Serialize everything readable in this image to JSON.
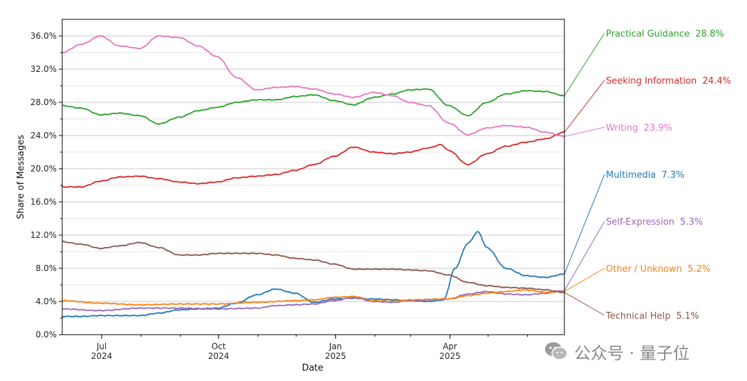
{
  "chart_data": {
    "type": "line",
    "xlabel": "Date",
    "ylabel": "Share of Messages",
    "ylim": [
      0,
      38
    ],
    "xlim": [
      "2024-05-31",
      "2025-06-30"
    ],
    "grid": "horizontal",
    "y_ticks": [
      "0.0%",
      "4.0%",
      "8.0%",
      "12.0%",
      "16.0%",
      "20.0%",
      "24.0%",
      "28.0%",
      "32.0%",
      "36.0%"
    ],
    "x_ticks": [
      {
        "date": "2024-07-01",
        "line1": "Jul",
        "line2": "2024"
      },
      {
        "date": "2024-10-01",
        "line1": "Oct",
        "line2": "2024"
      },
      {
        "date": "2025-01-01",
        "line1": "Jan",
        "line2": "2025"
      },
      {
        "date": "2025-04-01",
        "line1": "Apr",
        "line2": "2025"
      }
    ],
    "series": [
      {
        "name": "Practical Guidance",
        "final_label": "28.8%",
        "color": "#2ca02c",
        "points": [
          [
            "2024-05-31",
            27.6
          ],
          [
            "2024-06-15",
            27.3
          ],
          [
            "2024-06-30",
            26.5
          ],
          [
            "2024-07-15",
            26.7
          ],
          [
            "2024-07-31",
            26.4
          ],
          [
            "2024-08-15",
            25.4
          ],
          [
            "2024-08-31",
            26.2
          ],
          [
            "2024-09-15",
            27.0
          ],
          [
            "2024-09-30",
            27.4
          ],
          [
            "2024-10-15",
            28.0
          ],
          [
            "2024-10-31",
            28.3
          ],
          [
            "2024-11-15",
            28.3
          ],
          [
            "2024-11-30",
            28.7
          ],
          [
            "2024-12-15",
            28.9
          ],
          [
            "2024-12-31",
            28.2
          ],
          [
            "2025-01-15",
            27.7
          ],
          [
            "2025-01-31",
            28.6
          ],
          [
            "2025-02-15",
            29.0
          ],
          [
            "2025-02-28",
            29.5
          ],
          [
            "2025-03-15",
            29.6
          ],
          [
            "2025-03-31",
            27.6
          ],
          [
            "2025-04-15",
            26.4
          ],
          [
            "2025-04-30",
            28.0
          ],
          [
            "2025-05-15",
            29.0
          ],
          [
            "2025-05-31",
            29.4
          ],
          [
            "2025-06-15",
            29.3
          ],
          [
            "2025-06-30",
            28.8
          ]
        ]
      },
      {
        "name": "Seeking Information",
        "final_label": "24.4%",
        "color": "#d62728",
        "points": [
          [
            "2024-05-31",
            17.8
          ],
          [
            "2024-06-15",
            17.8
          ],
          [
            "2024-06-30",
            18.5
          ],
          [
            "2024-07-15",
            19.0
          ],
          [
            "2024-07-31",
            19.1
          ],
          [
            "2024-08-15",
            18.8
          ],
          [
            "2024-08-31",
            18.4
          ],
          [
            "2024-09-15",
            18.2
          ],
          [
            "2024-09-30",
            18.4
          ],
          [
            "2024-10-15",
            18.9
          ],
          [
            "2024-10-31",
            19.1
          ],
          [
            "2024-11-15",
            19.3
          ],
          [
            "2024-11-30",
            19.8
          ],
          [
            "2024-12-15",
            20.5
          ],
          [
            "2024-12-31",
            21.5
          ],
          [
            "2025-01-15",
            22.6
          ],
          [
            "2025-01-31",
            22.0
          ],
          [
            "2025-02-15",
            21.8
          ],
          [
            "2025-02-28",
            22.0
          ],
          [
            "2025-03-15",
            22.5
          ],
          [
            "2025-03-25",
            22.9
          ],
          [
            "2025-03-31",
            22.2
          ],
          [
            "2025-04-15",
            20.5
          ],
          [
            "2025-04-30",
            21.8
          ],
          [
            "2025-05-15",
            22.7
          ],
          [
            "2025-05-31",
            23.2
          ],
          [
            "2025-06-15",
            23.6
          ],
          [
            "2025-06-30",
            24.4
          ]
        ]
      },
      {
        "name": "Writing",
        "final_label": "23.9%",
        "color": "#e377c2",
        "points": [
          [
            "2024-05-31",
            34.0
          ],
          [
            "2024-06-15",
            35.0
          ],
          [
            "2024-06-30",
            36.0
          ],
          [
            "2024-07-15",
            34.8
          ],
          [
            "2024-07-31",
            34.5
          ],
          [
            "2024-08-15",
            36.0
          ],
          [
            "2024-08-31",
            35.8
          ],
          [
            "2024-09-15",
            34.8
          ],
          [
            "2024-09-30",
            33.5
          ],
          [
            "2024-10-15",
            31.0
          ],
          [
            "2024-10-31",
            29.5
          ],
          [
            "2024-11-15",
            29.8
          ],
          [
            "2024-11-30",
            29.9
          ],
          [
            "2024-12-15",
            29.6
          ],
          [
            "2024-12-31",
            29.0
          ],
          [
            "2025-01-15",
            28.6
          ],
          [
            "2025-01-31",
            29.2
          ],
          [
            "2025-02-15",
            28.8
          ],
          [
            "2025-02-28",
            28.0
          ],
          [
            "2025-03-15",
            27.6
          ],
          [
            "2025-03-31",
            25.5
          ],
          [
            "2025-04-15",
            24.1
          ],
          [
            "2025-04-30",
            24.9
          ],
          [
            "2025-05-15",
            25.2
          ],
          [
            "2025-05-31",
            25.0
          ],
          [
            "2025-06-15",
            24.4
          ],
          [
            "2025-06-30",
            23.9
          ]
        ]
      },
      {
        "name": "Multimedia",
        "final_label": "7.3%",
        "color": "#1f77b4",
        "points": [
          [
            "2024-05-31",
            2.2
          ],
          [
            "2024-06-15",
            2.2
          ],
          [
            "2024-06-30",
            2.3
          ],
          [
            "2024-07-15",
            2.3
          ],
          [
            "2024-07-31",
            2.3
          ],
          [
            "2024-08-15",
            2.6
          ],
          [
            "2024-08-31",
            3.0
          ],
          [
            "2024-09-15",
            3.1
          ],
          [
            "2024-09-30",
            3.2
          ],
          [
            "2024-10-15",
            3.8
          ],
          [
            "2024-10-31",
            4.8
          ],
          [
            "2024-11-15",
            5.5
          ],
          [
            "2024-11-30",
            5.0
          ],
          [
            "2024-12-15",
            3.9
          ],
          [
            "2024-12-31",
            4.3
          ],
          [
            "2025-01-15",
            4.4
          ],
          [
            "2025-01-31",
            4.3
          ],
          [
            "2025-02-15",
            4.2
          ],
          [
            "2025-02-28",
            4.1
          ],
          [
            "2025-03-15",
            4.0
          ],
          [
            "2025-03-27",
            4.2
          ],
          [
            "2025-04-05",
            8.0
          ],
          [
            "2025-04-15",
            11.0
          ],
          [
            "2025-04-23",
            12.4
          ],
          [
            "2025-04-30",
            10.5
          ],
          [
            "2025-05-15",
            8.0
          ],
          [
            "2025-05-31",
            7.1
          ],
          [
            "2025-06-15",
            6.9
          ],
          [
            "2025-06-30",
            7.3
          ]
        ]
      },
      {
        "name": "Self-Expression",
        "final_label": "5.3%",
        "color": "#9467bd",
        "points": [
          [
            "2024-05-31",
            3.1
          ],
          [
            "2024-06-30",
            2.9
          ],
          [
            "2024-07-31",
            3.2
          ],
          [
            "2024-08-31",
            3.2
          ],
          [
            "2024-09-30",
            3.1
          ],
          [
            "2024-10-31",
            3.2
          ],
          [
            "2024-11-15",
            3.5
          ],
          [
            "2024-11-30",
            3.6
          ],
          [
            "2024-12-15",
            3.7
          ],
          [
            "2024-12-31",
            4.1
          ],
          [
            "2025-01-15",
            4.5
          ],
          [
            "2025-01-31",
            4.0
          ],
          [
            "2025-02-15",
            3.9
          ],
          [
            "2025-02-28",
            4.1
          ],
          [
            "2025-03-31",
            4.3
          ],
          [
            "2025-04-15",
            4.9
          ],
          [
            "2025-04-30",
            5.2
          ],
          [
            "2025-05-15",
            4.9
          ],
          [
            "2025-05-31",
            4.8
          ],
          [
            "2025-06-15",
            5.0
          ],
          [
            "2025-06-30",
            5.3
          ]
        ]
      },
      {
        "name": "Other / Unknown",
        "final_label": "5.2%",
        "color": "#ff7f0e",
        "points": [
          [
            "2024-05-31",
            4.1
          ],
          [
            "2024-06-30",
            3.8
          ],
          [
            "2024-07-31",
            3.6
          ],
          [
            "2024-08-31",
            3.7
          ],
          [
            "2024-09-30",
            3.7
          ],
          [
            "2024-10-31",
            3.9
          ],
          [
            "2024-11-30",
            4.1
          ],
          [
            "2024-12-15",
            4.2
          ],
          [
            "2024-12-31",
            4.5
          ],
          [
            "2025-01-15",
            4.6
          ],
          [
            "2025-01-31",
            4.1
          ],
          [
            "2025-02-15",
            4.0
          ],
          [
            "2025-02-28",
            4.2
          ],
          [
            "2025-03-31",
            4.3
          ],
          [
            "2025-04-15",
            4.7
          ],
          [
            "2025-04-30",
            5.0
          ],
          [
            "2025-05-15",
            5.2
          ],
          [
            "2025-05-31",
            5.4
          ],
          [
            "2025-06-15",
            5.1
          ],
          [
            "2025-06-30",
            5.2
          ]
        ]
      },
      {
        "name": "Technical Help",
        "final_label": "5.1%",
        "color": "#8c564b",
        "points": [
          [
            "2024-05-31",
            11.2
          ],
          [
            "2024-06-15",
            10.9
          ],
          [
            "2024-06-30",
            10.4
          ],
          [
            "2024-07-15",
            10.7
          ],
          [
            "2024-07-31",
            11.1
          ],
          [
            "2024-08-15",
            10.5
          ],
          [
            "2024-08-31",
            9.6
          ],
          [
            "2024-09-15",
            9.6
          ],
          [
            "2024-09-30",
            9.8
          ],
          [
            "2024-10-15",
            9.8
          ],
          [
            "2024-10-31",
            9.8
          ],
          [
            "2024-11-15",
            9.6
          ],
          [
            "2024-11-30",
            9.2
          ],
          [
            "2024-12-15",
            9.0
          ],
          [
            "2024-12-31",
            8.5
          ],
          [
            "2025-01-15",
            7.9
          ],
          [
            "2025-01-31",
            7.9
          ],
          [
            "2025-02-15",
            7.9
          ],
          [
            "2025-02-28",
            7.8
          ],
          [
            "2025-03-15",
            7.7
          ],
          [
            "2025-03-31",
            7.2
          ],
          [
            "2025-04-15",
            6.3
          ],
          [
            "2025-04-30",
            5.9
          ],
          [
            "2025-05-15",
            5.7
          ],
          [
            "2025-05-31",
            5.6
          ],
          [
            "2025-06-15",
            5.4
          ],
          [
            "2025-06-30",
            5.1
          ]
        ]
      }
    ]
  },
  "watermark": {
    "text": "公众号 · 量子位",
    "icon": "wechat-icon"
  }
}
